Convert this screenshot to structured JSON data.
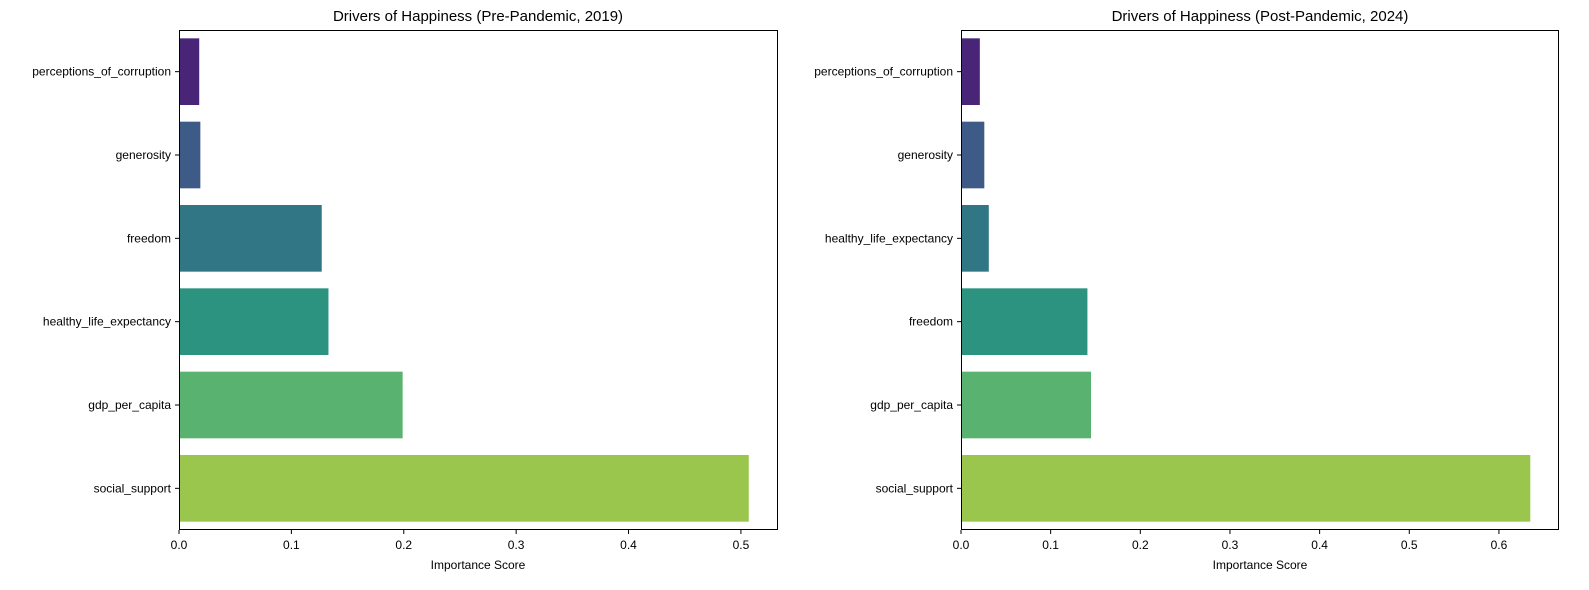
{
  "chart_data": [
    {
      "type": "bar",
      "orientation": "horizontal",
      "title": "Drivers of Happiness (Pre-Pandemic, 2019)",
      "xlabel": "Importance Score",
      "ylabel": "",
      "categories": [
        "perceptions_of_corruption",
        "generosity",
        "freedom",
        "healthy_life_expectancy",
        "gdp_per_capita",
        "social_support"
      ],
      "values": [
        0.018,
        0.019,
        0.127,
        0.133,
        0.199,
        0.507
      ],
      "colors": [
        "#482576",
        "#3e5a86",
        "#307685",
        "#2c9380",
        "#5ab270",
        "#9ac64e"
      ],
      "xlim": [
        0,
        0.533
      ],
      "xticks": [
        0.0,
        0.1,
        0.2,
        0.3,
        0.4,
        0.5
      ],
      "xtick_labels": [
        "0.0",
        "0.1",
        "0.2",
        "0.3",
        "0.4",
        "0.5"
      ],
      "grid": false
    },
    {
      "type": "bar",
      "orientation": "horizontal",
      "title": "Drivers of Happiness (Post-Pandemic, 2024)",
      "xlabel": "Importance Score",
      "ylabel": "",
      "categories": [
        "perceptions_of_corruption",
        "generosity",
        "healthy_life_expectancy",
        "freedom",
        "gdp_per_capita",
        "social_support"
      ],
      "values": [
        0.021,
        0.026,
        0.031,
        0.141,
        0.145,
        0.635
      ],
      "colors": [
        "#482576",
        "#3e5a86",
        "#307685",
        "#2c9380",
        "#5ab270",
        "#9ac64e"
      ],
      "xlim": [
        0,
        0.667
      ],
      "xticks": [
        0.0,
        0.1,
        0.2,
        0.3,
        0.4,
        0.5,
        0.6
      ],
      "xtick_labels": [
        "0.0",
        "0.1",
        "0.2",
        "0.3",
        "0.4",
        "0.5",
        "0.6"
      ],
      "grid": false
    }
  ]
}
